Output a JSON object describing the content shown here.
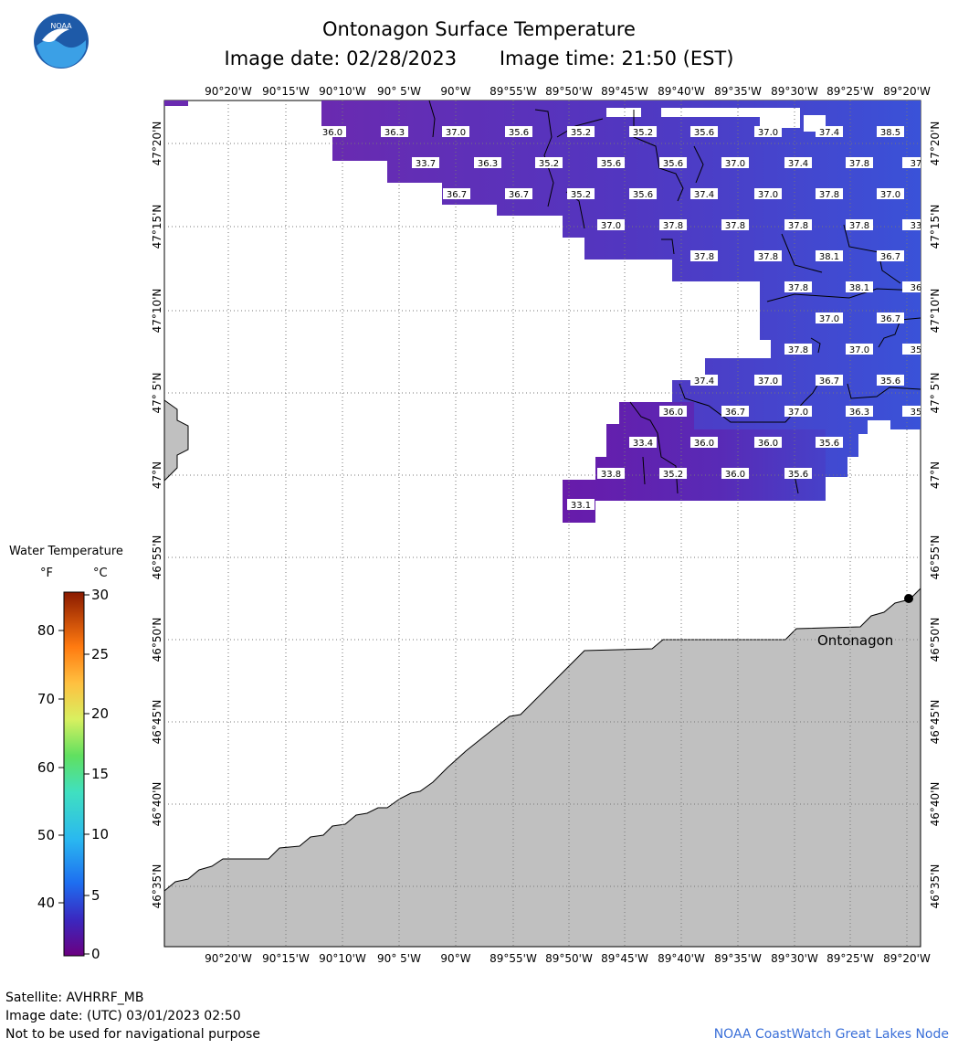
{
  "header": {
    "title": "Ontonagon Surface Temperature",
    "image_date": "Image date: 02/28/2023",
    "image_time": "Image time: 21:50 (EST)"
  },
  "logo": {
    "text": "NOAA",
    "colors": {
      "outer": "#1e5aa8",
      "inner": "#3ba0e6",
      "bird": "#ffffff"
    }
  },
  "map": {
    "lon_labels": [
      "90°20'W",
      "90°15'W",
      "90°10'W",
      "90° 5'W",
      "90°W",
      "89°55'W",
      "89°50'W",
      "89°45'W",
      "89°40'W",
      "89°35'W",
      "89°30'W",
      "89°25'W",
      "89°20'W"
    ],
    "lat_labels": [
      "47°20'N",
      "47°15'N",
      "47°10'N",
      "47° 5'N",
      "47°N",
      "46°55'N",
      "46°50'N",
      "46°45'N",
      "46°40'N",
      "46°35'N"
    ],
    "place_label": "Ontonagon",
    "temperature_labels": [
      "36.0",
      "36.3",
      "37.0",
      "35.6",
      "35.2",
      "35.2",
      "35.6",
      "37.0",
      "37.4",
      "38.5",
      "33.7",
      "36.3",
      "35.2",
      "35.6",
      "35.6",
      "37.0",
      "37.4",
      "37.8",
      "37",
      "36.7",
      "36.7",
      "35.2",
      "35.6",
      "37.4",
      "37.0",
      "37.8",
      "37.0",
      "37.0",
      "37.8",
      "37.8",
      "37.8",
      "37.8",
      "33",
      "37.8",
      "37.8",
      "38.1",
      "36.7",
      "37.8",
      "38.1",
      "36",
      "37.0",
      "36.7",
      "37.8",
      "37.0",
      "35",
      "37.4",
      "37.0",
      "36.7",
      "35.6",
      "36.0",
      "36.7",
      "37.0",
      "36.3",
      "35",
      "33.4",
      "36.0",
      "36.0",
      "35.6",
      "33.8",
      "35.2",
      "36.0",
      "35.6",
      "33.1"
    ],
    "colors": {
      "land": "#c0c0c0",
      "water_cold": "#6a1ea8",
      "water_warm": "#3c4fd8",
      "grid": "#777777"
    }
  },
  "legend": {
    "title": "Water Temperature",
    "unit_f": "°F",
    "unit_c": "°C",
    "f_ticks": [
      "80",
      "70",
      "60",
      "50",
      "40"
    ],
    "c_ticks": [
      "30",
      "25",
      "20",
      "15",
      "10",
      "5",
      "0"
    ]
  },
  "footer": {
    "satellite": "Satellite: AVHRRF_MB",
    "utc_date": "Image date: (UTC) 03/01/2023  02:50",
    "disclaimer": "Not to be used for navigational purpose",
    "credit": "NOAA CoastWatch Great Lakes Node"
  }
}
